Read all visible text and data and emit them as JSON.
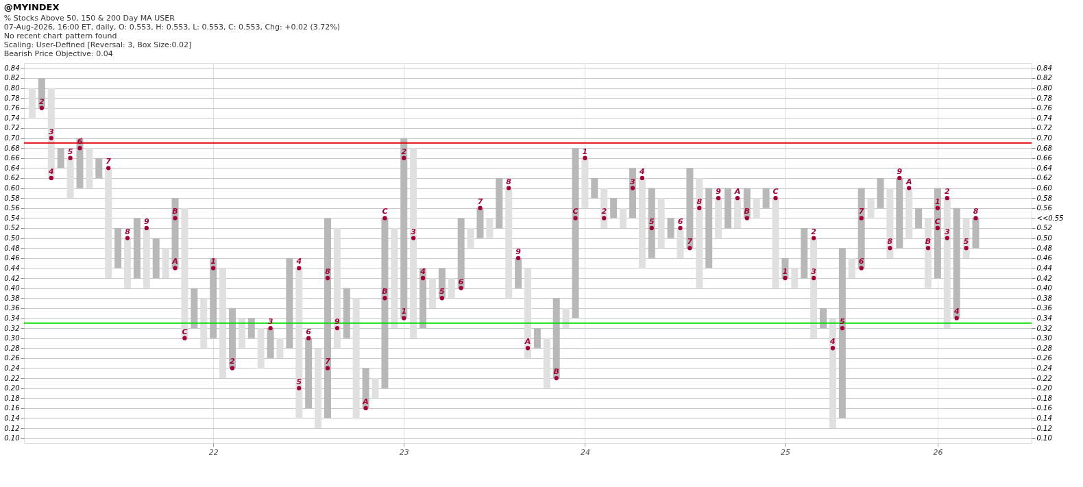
{
  "chart_data": {
    "type": "bar",
    "title": "@MYINDEX",
    "subtitle": "% Stocks Above 50, 150 & 200 Day MA  USER",
    "annotations": [
      "07-Aug-2026, 16:00 ET, daily, O: 0.553, H: 0.553, L: 0.553, C: 0.553, Chg: +0.02 (3.72%)",
      "No recent chart pattern found",
      "Scaling: User-Defined [Reversal: 3, Box Size:0.02]",
      "Bearish Price Objective: 0.04"
    ],
    "series": [
      {
        "type": "scatter",
        "name": "1",
        "marker": "circle",
        "color": "#a50034",
        "values": [
          null,
          null,
          null,
          null,
          null,
          null,
          null,
          null,
          null,
          null,
          null,
          null,
          null,
          null,
          null,
          null,
          null,
          null,
          null,
          0.44,
          null,
          null,
          null,
          null,
          null,
          null,
          null,
          null,
          null,
          null,
          null,
          null,
          null,
          null,
          null,
          null,
          null,
          null,
          null,
          0.34,
          null,
          null,
          null,
          null,
          null,
          null,
          null,
          null,
          null,
          null,
          null,
          null,
          null,
          null,
          null,
          null,
          null,
          null,
          0.66,
          null,
          null,
          null,
          null,
          null,
          null,
          null,
          null,
          null,
          null,
          null,
          null,
          null,
          null,
          null,
          null,
          null,
          null,
          null,
          null,
          0.42,
          null,
          null,
          null,
          null,
          null,
          null,
          null,
          null,
          null,
          null,
          null,
          null,
          null,
          null,
          null,
          0.56,
          null,
          null,
          null,
          null,
          null,
          null,
          null,
          null,
          null
        ]
      },
      {
        "type": "scatter",
        "name": "2",
        "marker": "circle",
        "color": "#a50034",
        "values": [
          null,
          0.76,
          null,
          null,
          null,
          null,
          null,
          null,
          null,
          null,
          null,
          null,
          null,
          null,
          null,
          null,
          null,
          null,
          null,
          null,
          null,
          0.24,
          null,
          null,
          null,
          null,
          null,
          null,
          null,
          null,
          null,
          null,
          null,
          null,
          null,
          null,
          null,
          null,
          null,
          0.66,
          null,
          null,
          null,
          null,
          null,
          null,
          null,
          null,
          null,
          null,
          null,
          null,
          null,
          null,
          null,
          null,
          null,
          null,
          null,
          null,
          0.54,
          null,
          null,
          null,
          null,
          null,
          null,
          null,
          null,
          null,
          null,
          null,
          null,
          null,
          null,
          null,
          null,
          null,
          null,
          null,
          null,
          null,
          0.5,
          null,
          null,
          null,
          null,
          null,
          null,
          null,
          null,
          null,
          null,
          null,
          null,
          null,
          0.58,
          null,
          null,
          null,
          null,
          null,
          null,
          null,
          null
        ]
      },
      {
        "type": "scatter",
        "name": "3",
        "marker": "circle",
        "color": "#a50034",
        "values": [
          null,
          null,
          0.7,
          null,
          null,
          null,
          null,
          null,
          null,
          null,
          null,
          null,
          null,
          null,
          null,
          null,
          null,
          null,
          null,
          null,
          null,
          null,
          null,
          null,
          null,
          0.32,
          null,
          null,
          null,
          null,
          null,
          null,
          null,
          null,
          null,
          null,
          null,
          null,
          null,
          null,
          0.5,
          null,
          null,
          null,
          null,
          null,
          null,
          null,
          null,
          null,
          null,
          null,
          null,
          null,
          null,
          null,
          null,
          null,
          null,
          null,
          null,
          null,
          null,
          0.6,
          null,
          null,
          null,
          null,
          null,
          null,
          null,
          null,
          null,
          null,
          null,
          null,
          null,
          null,
          null,
          null,
          null,
          null,
          0.42,
          null,
          null,
          null,
          null,
          null,
          null,
          null,
          null,
          null,
          null,
          null,
          null,
          null,
          0.5,
          null,
          null,
          null,
          null,
          null,
          null,
          null,
          null
        ]
      },
      {
        "type": "scatter",
        "name": "4",
        "marker": "circle",
        "color": "#a50034",
        "values": [
          null,
          null,
          0.62,
          null,
          null,
          null,
          null,
          null,
          null,
          null,
          null,
          null,
          null,
          null,
          null,
          null,
          null,
          null,
          null,
          null,
          null,
          null,
          null,
          null,
          null,
          null,
          null,
          null,
          0.44,
          null,
          null,
          null,
          null,
          null,
          null,
          null,
          null,
          null,
          null,
          null,
          null,
          0.42,
          null,
          null,
          null,
          null,
          null,
          null,
          null,
          null,
          null,
          null,
          null,
          null,
          null,
          null,
          null,
          null,
          null,
          null,
          null,
          null,
          null,
          null,
          0.62,
          null,
          null,
          null,
          null,
          null,
          null,
          null,
          null,
          null,
          null,
          null,
          null,
          null,
          null,
          null,
          null,
          null,
          null,
          null,
          0.28,
          null,
          null,
          null,
          null,
          null,
          null,
          null,
          null,
          null,
          null,
          null,
          null,
          0.34,
          null,
          null,
          null,
          null,
          null,
          null,
          null
        ]
      },
      {
        "type": "scatter",
        "name": "5",
        "marker": "circle",
        "color": "#a50034",
        "values": [
          null,
          null,
          null,
          null,
          0.66,
          null,
          null,
          null,
          null,
          null,
          null,
          null,
          null,
          null,
          null,
          null,
          null,
          null,
          null,
          null,
          null,
          null,
          null,
          null,
          null,
          null,
          null,
          null,
          0.2,
          null,
          null,
          null,
          null,
          null,
          null,
          null,
          null,
          null,
          null,
          null,
          null,
          null,
          null,
          0.38,
          null,
          null,
          null,
          null,
          null,
          null,
          null,
          null,
          null,
          null,
          null,
          null,
          null,
          null,
          null,
          null,
          null,
          null,
          null,
          null,
          null,
          0.52,
          null,
          null,
          null,
          null,
          null,
          null,
          null,
          null,
          null,
          null,
          null,
          null,
          null,
          null,
          null,
          null,
          null,
          null,
          null,
          0.32,
          null,
          null,
          null,
          null,
          null,
          null,
          null,
          null,
          null,
          null,
          null,
          null,
          0.48,
          null,
          null,
          null,
          null,
          null,
          null
        ]
      },
      {
        "type": "scatter",
        "name": "6",
        "marker": "circle",
        "color": "#a50034",
        "values": [
          null,
          null,
          null,
          null,
          null,
          0.68,
          null,
          null,
          null,
          null,
          null,
          null,
          null,
          null,
          null,
          null,
          null,
          null,
          null,
          null,
          null,
          null,
          null,
          null,
          null,
          null,
          null,
          null,
          null,
          0.3,
          null,
          null,
          null,
          null,
          null,
          null,
          null,
          null,
          null,
          null,
          null,
          null,
          null,
          null,
          null,
          0.4,
          null,
          null,
          null,
          null,
          null,
          null,
          null,
          null,
          null,
          null,
          null,
          null,
          null,
          null,
          null,
          null,
          null,
          null,
          null,
          null,
          null,
          null,
          0.52,
          null,
          null,
          null,
          null,
          null,
          null,
          null,
          null,
          null,
          null,
          null,
          null,
          null,
          null,
          null,
          null,
          null,
          null,
          0.44,
          null,
          null,
          null,
          null,
          null,
          null,
          null,
          null,
          null,
          null,
          null,
          null,
          null,
          null,
          null,
          null,
          null
        ]
      },
      {
        "type": "scatter",
        "name": "7",
        "marker": "circle",
        "color": "#a50034",
        "values": [
          null,
          null,
          null,
          null,
          null,
          null,
          null,
          null,
          0.64,
          null,
          null,
          null,
          null,
          null,
          null,
          null,
          null,
          null,
          null,
          null,
          null,
          null,
          null,
          null,
          null,
          null,
          null,
          null,
          null,
          null,
          null,
          0.24,
          null,
          null,
          null,
          null,
          null,
          null,
          null,
          null,
          null,
          null,
          null,
          null,
          null,
          null,
          null,
          0.56,
          null,
          null,
          null,
          null,
          null,
          null,
          null,
          null,
          null,
          null,
          null,
          null,
          null,
          null,
          null,
          null,
          null,
          null,
          null,
          null,
          null,
          0.48,
          null,
          null,
          null,
          null,
          null,
          null,
          null,
          null,
          null,
          null,
          null,
          null,
          null,
          null,
          null,
          null,
          null,
          0.54,
          null,
          null,
          null,
          null,
          null,
          null,
          null,
          null,
          null,
          null,
          null,
          null,
          null,
          null,
          null,
          null,
          null
        ]
      },
      {
        "type": "scatter",
        "name": "8",
        "marker": "circle",
        "color": "#a50034",
        "values": [
          null,
          null,
          null,
          null,
          null,
          null,
          null,
          null,
          null,
          null,
          0.5,
          null,
          null,
          null,
          null,
          null,
          null,
          null,
          null,
          null,
          null,
          null,
          null,
          null,
          null,
          null,
          null,
          null,
          null,
          null,
          null,
          0.42,
          null,
          null,
          null,
          null,
          null,
          null,
          null,
          null,
          null,
          null,
          null,
          null,
          null,
          null,
          null,
          null,
          null,
          null,
          0.6,
          null,
          null,
          null,
          null,
          null,
          null,
          null,
          null,
          null,
          null,
          null,
          null,
          null,
          null,
          null,
          null,
          null,
          null,
          null,
          0.56,
          null,
          null,
          null,
          null,
          null,
          null,
          null,
          null,
          null,
          null,
          null,
          null,
          null,
          null,
          null,
          null,
          null,
          null,
          null,
          0.48,
          null,
          null,
          null,
          null,
          null,
          null,
          null,
          null,
          0.54,
          null,
          null,
          null,
          null,
          null
        ]
      },
      {
        "type": "scatter",
        "name": "9",
        "marker": "circle",
        "color": "#a50034",
        "values": [
          null,
          null,
          null,
          null,
          null,
          null,
          null,
          null,
          null,
          null,
          null,
          null,
          0.52,
          null,
          null,
          null,
          null,
          null,
          null,
          null,
          null,
          null,
          null,
          null,
          null,
          null,
          null,
          null,
          null,
          null,
          null,
          null,
          0.32,
          null,
          null,
          null,
          null,
          null,
          null,
          null,
          null,
          null,
          null,
          null,
          null,
          null,
          null,
          null,
          null,
          null,
          null,
          0.46,
          null,
          null,
          null,
          null,
          null,
          null,
          null,
          null,
          null,
          null,
          null,
          null,
          null,
          null,
          null,
          null,
          null,
          null,
          null,
          null,
          0.58,
          null,
          null,
          null,
          null,
          null,
          null,
          null,
          null,
          null,
          null,
          null,
          null,
          null,
          null,
          null,
          null,
          null,
          null,
          0.62,
          null,
          null,
          null,
          null,
          null,
          null,
          null,
          null,
          null,
          null,
          null,
          null,
          null
        ]
      },
      {
        "type": "scatter",
        "name": "A",
        "marker": "circle",
        "color": "#a50034",
        "values": [
          null,
          null,
          null,
          null,
          null,
          null,
          null,
          null,
          null,
          null,
          null,
          null,
          null,
          null,
          null,
          0.44,
          null,
          null,
          null,
          null,
          null,
          null,
          null,
          null,
          null,
          null,
          null,
          null,
          null,
          null,
          null,
          null,
          null,
          null,
          null,
          0.16,
          null,
          null,
          null,
          null,
          null,
          null,
          null,
          null,
          null,
          null,
          null,
          null,
          null,
          null,
          null,
          null,
          0.28,
          null,
          null,
          null,
          null,
          null,
          null,
          null,
          null,
          null,
          null,
          null,
          null,
          null,
          null,
          null,
          null,
          null,
          null,
          null,
          null,
          null,
          0.58,
          null,
          null,
          null,
          null,
          null,
          null,
          null,
          null,
          null,
          null,
          null,
          null,
          null,
          null,
          null,
          null,
          null,
          0.6,
          null,
          null,
          null,
          null,
          null,
          null,
          null,
          null,
          null,
          null,
          null,
          null
        ]
      },
      {
        "type": "scatter",
        "name": "B",
        "marker": "circle",
        "color": "#a50034",
        "values": [
          null,
          null,
          null,
          null,
          null,
          null,
          null,
          null,
          null,
          null,
          null,
          null,
          null,
          null,
          null,
          0.54,
          null,
          null,
          null,
          null,
          null,
          null,
          null,
          null,
          null,
          null,
          null,
          null,
          null,
          null,
          null,
          null,
          null,
          null,
          null,
          null,
          null,
          0.38,
          null,
          null,
          null,
          null,
          null,
          null,
          null,
          null,
          null,
          null,
          null,
          null,
          null,
          null,
          null,
          null,
          null,
          0.22,
          null,
          null,
          null,
          null,
          null,
          null,
          null,
          null,
          null,
          null,
          null,
          null,
          null,
          null,
          null,
          null,
          null,
          null,
          null,
          0.54,
          null,
          null,
          null,
          null,
          null,
          null,
          null,
          null,
          null,
          null,
          null,
          null,
          null,
          null,
          null,
          null,
          null,
          null,
          0.48,
          null,
          null,
          null,
          null,
          null,
          null,
          null,
          null,
          null,
          null
        ]
      },
      {
        "type": "scatter",
        "name": "C",
        "marker": "circle",
        "color": "#a50034",
        "values": [
          null,
          null,
          null,
          null,
          null,
          null,
          null,
          null,
          null,
          null,
          null,
          null,
          null,
          null,
          null,
          null,
          0.3,
          null,
          null,
          null,
          null,
          null,
          null,
          null,
          null,
          null,
          null,
          null,
          null,
          null,
          null,
          null,
          null,
          null,
          null,
          null,
          null,
          0.54,
          null,
          null,
          null,
          null,
          null,
          null,
          null,
          null,
          null,
          null,
          null,
          null,
          null,
          null,
          null,
          null,
          null,
          null,
          null,
          0.54,
          null,
          null,
          null,
          null,
          null,
          null,
          null,
          null,
          null,
          null,
          null,
          null,
          null,
          null,
          null,
          null,
          null,
          null,
          null,
          null,
          0.58,
          null,
          null,
          null,
          null,
          null,
          null,
          null,
          null,
          null,
          null,
          null,
          null,
          null,
          null,
          null,
          null,
          0.52,
          null,
          null,
          null,
          null,
          null,
          null,
          null,
          null,
          null
        ]
      },
      {
        "color": "#e0e0e0",
        "base": [
          0.74,
          null,
          0.62,
          null,
          0.58,
          null,
          0.6,
          null,
          0.42,
          null,
          0.4,
          null,
          0.4,
          null,
          0.42,
          null,
          0.3,
          null,
          0.28,
          null,
          0.22,
          null,
          0.28,
          null,
          0.24,
          null,
          0.26,
          null,
          0.14,
          null,
          0.12,
          null,
          0.28,
          null,
          0.14,
          null,
          0.18,
          null,
          0.32,
          null,
          0.3,
          null,
          0.36,
          null,
          0.38,
          null,
          0.48,
          null,
          0.5,
          null,
          0.38,
          null,
          0.26,
          null,
          0.2,
          null,
          0.32,
          null,
          0.56,
          null,
          0.52,
          null,
          0.52,
          null,
          0.44,
          null,
          0.48,
          null,
          0.46,
          null,
          0.4,
          null,
          0.5,
          null,
          0.52,
          null,
          0.54,
          null,
          0.4,
          null,
          0.4,
          null,
          0.3,
          null,
          0.12,
          null,
          0.42,
          null,
          0.54,
          null,
          0.46,
          null,
          0.5,
          null,
          0.4,
          null,
          0.32,
          null,
          0.46,
          null,
          null,
          null,
          null,
          null,
          null
        ],
        "values": [
          0.06,
          null,
          0.18,
          null,
          0.08,
          null,
          0.08,
          null,
          0.22,
          null,
          0.1,
          null,
          0.12,
          null,
          0.06,
          null,
          0.26,
          null,
          0.1,
          null,
          0.22,
          null,
          0.06,
          null,
          0.08,
          null,
          0.04,
          null,
          0.3,
          null,
          0.16,
          null,
          0.24,
          null,
          0.24,
          null,
          0.04,
          null,
          0.2,
          null,
          0.38,
          null,
          0.06,
          null,
          0.04,
          null,
          0.04,
          null,
          0.04,
          null,
          0.22,
          null,
          0.18,
          null,
          0.1,
          null,
          0.04,
          null,
          0.1,
          null,
          0.08,
          null,
          0.04,
          null,
          0.18,
          null,
          0.1,
          null,
          0.06,
          null,
          0.22,
          null,
          0.08,
          null,
          0.06,
          null,
          0.04,
          null,
          0.18,
          null,
          0.04,
          null,
          0.2,
          null,
          0.22,
          null,
          0.04,
          null,
          0.04,
          null,
          0.14,
          null,
          0.1,
          null,
          0.14,
          null,
          0.26,
          null,
          0.08,
          null,
          null,
          null,
          null,
          null,
          null
        ]
      },
      {
        "color": "#b8b8b8",
        "base": [
          null,
          0.76,
          null,
          0.64,
          null,
          0.6,
          null,
          0.62,
          null,
          0.44,
          null,
          0.42,
          null,
          0.42,
          null,
          0.44,
          null,
          0.32,
          null,
          0.3,
          null,
          0.24,
          null,
          0.3,
          null,
          0.26,
          null,
          0.28,
          null,
          0.16,
          null,
          0.14,
          null,
          0.3,
          null,
          0.16,
          null,
          0.2,
          null,
          0.34,
          null,
          0.32,
          null,
          0.38,
          null,
          0.4,
          null,
          0.5,
          null,
          0.52,
          null,
          0.4,
          null,
          0.28,
          null,
          0.22,
          null,
          0.34,
          null,
          0.58,
          null,
          0.54,
          null,
          0.54,
          null,
          0.46,
          null,
          0.5,
          null,
          0.48,
          null,
          0.44,
          null,
          0.52,
          null,
          0.54,
          null,
          0.56,
          null,
          0.42,
          null,
          0.42,
          null,
          0.32,
          null,
          0.14,
          null,
          0.44,
          null,
          0.56,
          null,
          0.48,
          null,
          0.52,
          null,
          0.42,
          null,
          0.34,
          null,
          0.48,
          null,
          null,
          null,
          null,
          null
        ],
        "values": [
          null,
          0.06,
          null,
          0.04,
          null,
          0.1,
          null,
          0.04,
          null,
          0.08,
          null,
          0.12,
          null,
          0.08,
          null,
          0.14,
          null,
          0.08,
          null,
          0.16,
          null,
          0.12,
          null,
          0.04,
          null,
          0.06,
          null,
          0.18,
          null,
          0.14,
          null,
          0.4,
          null,
          0.1,
          null,
          0.08,
          null,
          0.34,
          null,
          0.36,
          null,
          0.12,
          null,
          0.06,
          null,
          0.14,
          null,
          0.06,
          null,
          0.1,
          null,
          0.06,
          null,
          0.04,
          null,
          0.16,
          null,
          0.34,
          null,
          0.04,
          null,
          0.04,
          null,
          0.1,
          null,
          0.14,
          null,
          0.04,
          null,
          0.16,
          null,
          0.16,
          null,
          0.08,
          null,
          0.06,
          null,
          0.04,
          null,
          0.04,
          null,
          0.1,
          null,
          0.04,
          null,
          0.34,
          null,
          0.16,
          null,
          0.06,
          null,
          0.14,
          null,
          0.04,
          null,
          0.18,
          null,
          0.22,
          null,
          0.06,
          null,
          null,
          null,
          null,
          null
        ]
      }
    ],
    "categories": [
      null,
      null,
      null,
      null,
      null,
      null,
      null,
      null,
      null,
      null,
      null,
      null,
      null,
      null,
      null,
      null,
      null,
      null,
      null,
      "22",
      null,
      null,
      null,
      null,
      null,
      null,
      null,
      null,
      null,
      null,
      null,
      null,
      null,
      null,
      null,
      null,
      null,
      null,
      null,
      "23",
      null,
      null,
      null,
      null,
      null,
      null,
      null,
      null,
      null,
      null,
      null,
      null,
      null,
      null,
      null,
      null,
      null,
      null,
      "24",
      null,
      null,
      null,
      null,
      null,
      null,
      null,
      null,
      null,
      null,
      null,
      null,
      null,
      null,
      null,
      null,
      null,
      null,
      null,
      null,
      "25",
      null,
      null,
      null,
      null,
      null,
      null,
      null,
      null,
      null,
      null,
      null,
      null,
      null,
      null,
      null,
      "26",
      null,
      null,
      null,
      null,
      null,
      null,
      null,
      null,
      null
    ],
    "ylim": [
      0.09,
      0.85
    ],
    "yticks": [
      {
        "value": 0.1,
        "label": "0.10"
      },
      0.12,
      0.14,
      0.16,
      0.18,
      {
        "value": 0.2,
        "label": "0.20"
      },
      0.22,
      0.24,
      0.26,
      0.28,
      {
        "value": 0.3,
        "label": "0.30"
      },
      0.32,
      0.34,
      0.36,
      0.38,
      {
        "value": 0.4,
        "label": "0.40"
      },
      0.42,
      0.44,
      0.46,
      0.48,
      {
        "value": 0.5,
        "label": "0.50"
      },
      0.52,
      0.54,
      0.56,
      0.58,
      {
        "value": 0.6,
        "label": "0.60"
      },
      0.62,
      0.64,
      0.66,
      0.68,
      {
        "value": 0.7,
        "label": "0.70"
      },
      0.72,
      0.74,
      0.76,
      0.78,
      {
        "value": 0.8,
        "label": "0.80"
      },
      0.82,
      0.84
    ],
    "y2lim": [
      0.09,
      0.85
    ],
    "y2ticks": [
      {
        "value": 0.1,
        "label": "0.10"
      },
      0.12,
      0.14,
      0.16,
      0.18,
      {
        "value": 0.2,
        "label": "0.20"
      },
      0.22,
      0.24,
      0.26,
      0.28,
      {
        "value": 0.3,
        "label": "0.30"
      },
      0.32,
      0.34,
      0.36,
      0.38,
      {
        "value": 0.4,
        "label": "0.40"
      },
      0.42,
      0.44,
      0.46,
      0.48,
      {
        "value": 0.5,
        "label": "0.50"
      },
      0.52,
      {
        "value": 0.54,
        "label": "<<0.55"
      },
      0.56,
      0.58,
      {
        "value": 0.6,
        "label": "0.60"
      },
      0.62,
      0.64,
      0.66,
      0.68,
      {
        "value": 0.7,
        "label": "0.70"
      },
      0.72,
      0.74,
      0.76,
      0.78,
      {
        "value": 0.8,
        "label": "0.80"
      },
      0.82,
      0.84
    ],
    "ref_lines": [
      {
        "axis": "y",
        "value": 0.69,
        "color": "#e00000"
      },
      {
        "axis": "y",
        "value": 0.33,
        "color": "#00e000"
      }
    ],
    "grid": true,
    "legend": false
  }
}
